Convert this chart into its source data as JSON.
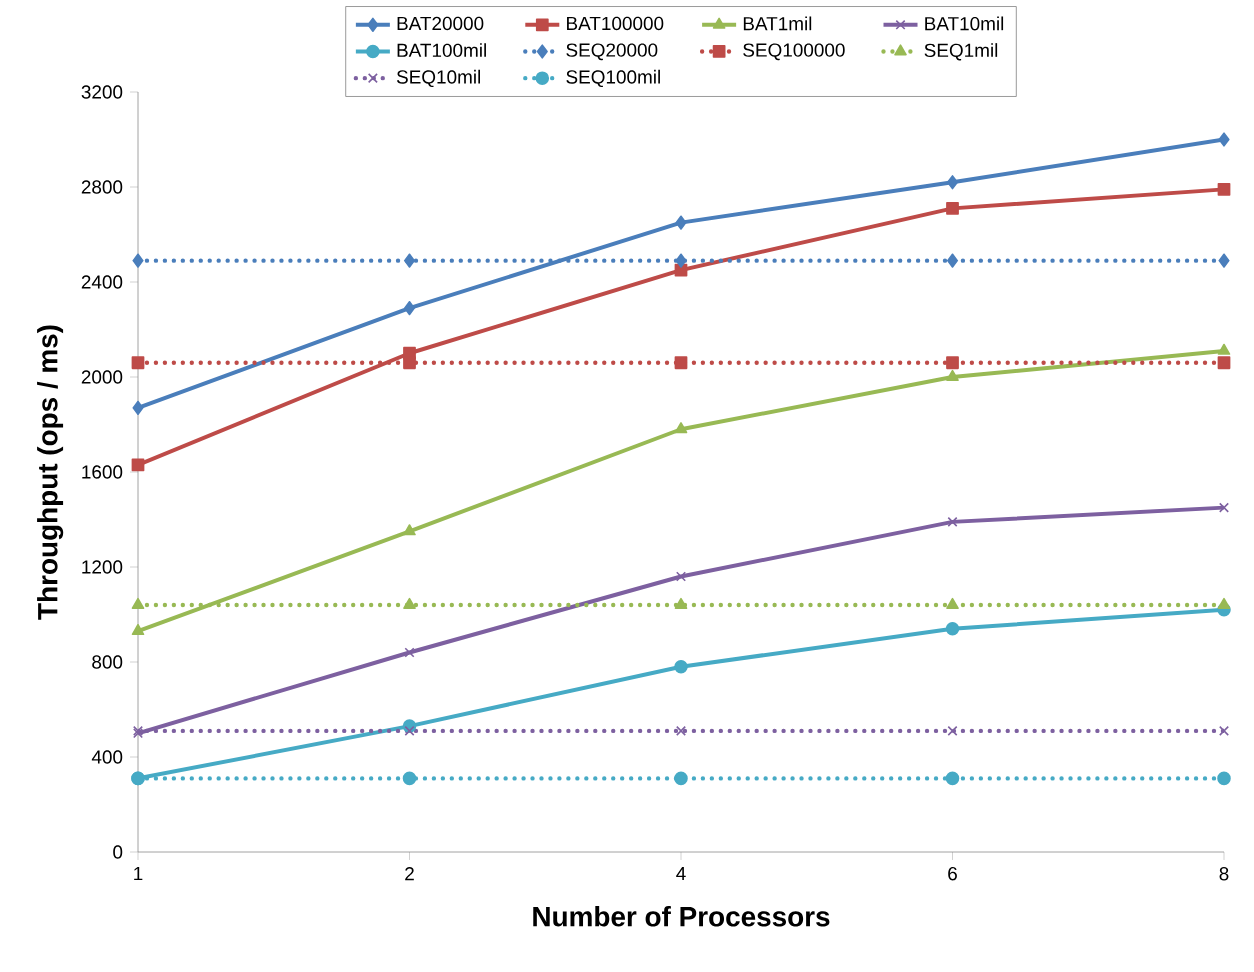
{
  "chart_data": {
    "type": "line",
    "xlabel": "Number of Processors",
    "ylabel": "Throughput (ops / ms)",
    "categories": [
      "1",
      "2",
      "4",
      "6",
      "8"
    ],
    "ylim": [
      0,
      3200
    ],
    "yticks": [
      0,
      400,
      800,
      1200,
      1600,
      2000,
      2400,
      2800,
      3200
    ],
    "legend": "top",
    "grid": false,
    "series": [
      {
        "name": "BAT20000",
        "color": "#4a7ebb",
        "marker": "diamond",
        "line_style": "solid",
        "values": [
          1870,
          2290,
          2650,
          2820,
          3000
        ]
      },
      {
        "name": "BAT100000",
        "color": "#be4b48",
        "marker": "square",
        "line_style": "solid",
        "values": [
          1630,
          2100,
          2450,
          2710,
          2790
        ]
      },
      {
        "name": "BAT1mil",
        "color": "#98b954",
        "marker": "triangle",
        "line_style": "solid",
        "values": [
          930,
          1350,
          1780,
          2000,
          2110
        ]
      },
      {
        "name": "BAT10mil",
        "color": "#7d60a0",
        "marker": "cross",
        "line_style": "solid",
        "values": [
          500,
          840,
          1160,
          1390,
          1450
        ]
      },
      {
        "name": "BAT100mil",
        "color": "#46aac5",
        "marker": "circle",
        "line_style": "solid",
        "values": [
          310,
          530,
          780,
          940,
          1020
        ]
      },
      {
        "name": "SEQ20000",
        "color": "#4a7ebb",
        "marker": "diamond",
        "line_style": "dotted",
        "values": [
          2490,
          2490,
          2490,
          2490,
          2490
        ]
      },
      {
        "name": "SEQ100000",
        "color": "#be4b48",
        "marker": "square",
        "line_style": "dotted",
        "values": [
          2060,
          2060,
          2060,
          2060,
          2060
        ]
      },
      {
        "name": "SEQ1mil",
        "color": "#98b954",
        "marker": "triangle",
        "line_style": "dotted",
        "values": [
          1040,
          1040,
          1040,
          1040,
          1040
        ]
      },
      {
        "name": "SEQ10mil",
        "color": "#7d60a0",
        "marker": "cross",
        "line_style": "dotted",
        "values": [
          510,
          510,
          510,
          510,
          510
        ]
      },
      {
        "name": "SEQ100mil",
        "color": "#46aac5",
        "marker": "circle",
        "line_style": "dotted",
        "values": [
          310,
          310,
          310,
          310,
          310
        ]
      }
    ]
  }
}
